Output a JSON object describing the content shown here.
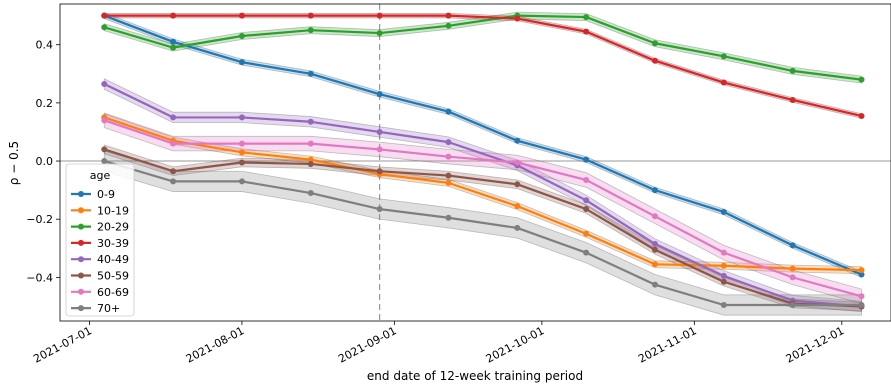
{
  "chart_data": {
    "type": "line",
    "xlabel": "end date of 12-week training period",
    "ylabel": "ρ − 0.5",
    "ylim": [
      -0.55,
      0.54
    ],
    "xlim": [
      "2021-06-25",
      "2021-12-11"
    ],
    "x_ticks": [
      "2021-07-01",
      "2021-08-01",
      "2021-09-01",
      "2021-10-01",
      "2021-11-01",
      "2021-12-01"
    ],
    "y_ticks": [
      -0.4,
      -0.2,
      0.0,
      0.2,
      0.4
    ],
    "y_tick_labels": [
      "−0.4",
      "−0.2",
      "0.0",
      "0.2",
      "0.4"
    ],
    "reference_vline": "2021-08-29",
    "reference_hline": 0.0,
    "legend": {
      "title": "age",
      "placement": "left"
    },
    "x": [
      "2021-07-04",
      "2021-07-18",
      "2021-08-01",
      "2021-08-15",
      "2021-08-29",
      "2021-09-12",
      "2021-09-26",
      "2021-10-10",
      "2021-10-24",
      "2021-11-07",
      "2021-11-21",
      "2021-12-05"
    ],
    "series": [
      {
        "name": "0-9",
        "color": "#1f77b4",
        "values": [
          0.5,
          0.41,
          0.34,
          0.3,
          0.23,
          0.17,
          0.07,
          0.005,
          -0.1,
          -0.175,
          -0.29,
          -0.39
        ],
        "band": 0.01
      },
      {
        "name": "10-19",
        "color": "#ff7f0e",
        "values": [
          0.15,
          0.07,
          0.03,
          0.005,
          -0.045,
          -0.075,
          -0.155,
          -0.25,
          -0.355,
          -0.36,
          -0.37,
          -0.375
        ],
        "band": 0.012
      },
      {
        "name": "20-29",
        "color": "#2ca02c",
        "values": [
          0.46,
          0.39,
          0.43,
          0.45,
          0.44,
          0.465,
          0.5,
          0.495,
          0.405,
          0.36,
          0.31,
          0.28
        ],
        "band": 0.012
      },
      {
        "name": "30-39",
        "color": "#d62728",
        "values": [
          0.5,
          0.5,
          0.5,
          0.5,
          0.5,
          0.5,
          0.49,
          0.445,
          0.345,
          0.27,
          0.21,
          0.155
        ],
        "band": 0.008
      },
      {
        "name": "40-49",
        "color": "#9467bd",
        "values": [
          0.265,
          0.15,
          0.15,
          0.135,
          0.1,
          0.065,
          -0.015,
          -0.135,
          -0.285,
          -0.395,
          -0.48,
          -0.5
        ],
        "band": 0.018
      },
      {
        "name": "50-59",
        "color": "#8c564b",
        "values": [
          0.04,
          -0.035,
          -0.005,
          -0.01,
          -0.035,
          -0.05,
          -0.08,
          -0.165,
          -0.305,
          -0.415,
          -0.49,
          -0.5
        ],
        "band": 0.015
      },
      {
        "name": "60-69",
        "color": "#e377c2",
        "values": [
          0.14,
          0.06,
          0.06,
          0.06,
          0.04,
          0.015,
          -0.005,
          -0.065,
          -0.19,
          -0.315,
          -0.4,
          -0.465
        ],
        "band": 0.025
      },
      {
        "name": "70+",
        "color": "#7f7f7f",
        "values": [
          0.0,
          -0.07,
          -0.07,
          -0.11,
          -0.165,
          -0.195,
          -0.23,
          -0.315,
          -0.425,
          -0.495,
          -0.495,
          -0.495
        ],
        "band": 0.035
      }
    ]
  }
}
